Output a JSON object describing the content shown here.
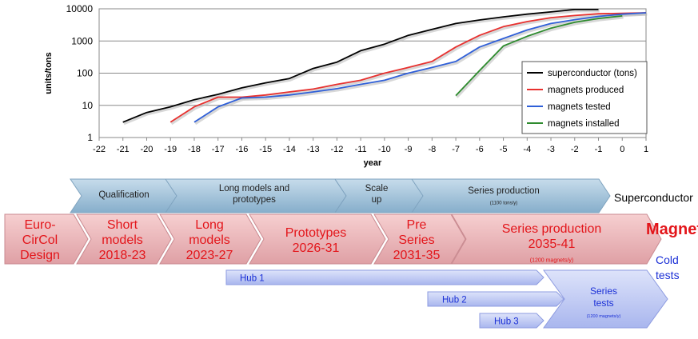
{
  "chart_data": {
    "type": "line",
    "title": "",
    "xlabel": "year",
    "ylabel": "units/tons",
    "y_scale": "log",
    "xlim": [
      -22,
      1
    ],
    "ylim": [
      1,
      10000
    ],
    "x_ticks": [
      "-22",
      "-21",
      "-20",
      "-19",
      "-18",
      "-17",
      "-16",
      "-15",
      "-14",
      "-13",
      "-12",
      "-11",
      "-10",
      "-9",
      "-8",
      "-7",
      "-6",
      "-5",
      "-4",
      "-3",
      "-2",
      "-1",
      "0",
      "1"
    ],
    "y_ticks": [
      "1",
      "10",
      "100",
      "1000",
      "10000"
    ],
    "grid": "horizontal",
    "legend_position": "right",
    "series": [
      {
        "name": "superconductor (tons)",
        "color": "#000000",
        "x": [
          -21,
          -20,
          -19,
          -18,
          -17,
          -16,
          -15,
          -14,
          -13,
          -12,
          -11,
          -10,
          -9,
          -8,
          -7,
          -6,
          -5,
          -4,
          -3,
          -2,
          -1
        ],
        "y": [
          3,
          6,
          9,
          15,
          22,
          35,
          50,
          68,
          140,
          220,
          500,
          800,
          1500,
          2300,
          3500,
          4500,
          5600,
          6800,
          8000,
          9500,
          9500
        ]
      },
      {
        "name": "magnets produced",
        "color": "#e8312f",
        "x": [
          -19,
          -18,
          -17,
          -16,
          -15,
          -14,
          -13,
          -12,
          -11,
          -10,
          -9,
          -8,
          -7,
          -6,
          -5,
          -4,
          -3,
          -2,
          -1,
          0,
          1
        ],
        "y": [
          3,
          9,
          18,
          18,
          21,
          26,
          32,
          45,
          60,
          100,
          150,
          230,
          650,
          1500,
          2800,
          4000,
          5300,
          6200,
          7000,
          7200,
          7500
        ]
      },
      {
        "name": "magnets tested",
        "color": "#2f5fd8",
        "x": [
          -18,
          -17,
          -16,
          -15,
          -14,
          -13,
          -12,
          -11,
          -10,
          -9,
          -8,
          -7,
          -6,
          -5,
          -4,
          -3,
          -2,
          -1,
          0,
          1
        ],
        "y": [
          3,
          9,
          17,
          18,
          21,
          26,
          33,
          45,
          60,
          100,
          150,
          230,
          650,
          1200,
          2200,
          3500,
          4600,
          5800,
          6800,
          7500
        ]
      },
      {
        "name": "magnets installed",
        "color": "#2e8b2e",
        "x": [
          -7,
          -6,
          -5,
          -4,
          -3,
          -2,
          -1,
          0
        ],
        "y": [
          20,
          120,
          700,
          1400,
          2500,
          3800,
          5000,
          6000
        ]
      }
    ]
  },
  "timeline": {
    "superconductor_label": "Superconductor",
    "magnets_label": "Magnets",
    "cold_tests_label": [
      "Cold",
      "tests"
    ],
    "superconductor_phases": [
      {
        "lines": [
          "Qualification"
        ],
        "sub": ""
      },
      {
        "lines": [
          "Long models and",
          "prototypes"
        ],
        "sub": ""
      },
      {
        "lines": [
          "Scale",
          "up"
        ],
        "sub": ""
      },
      {
        "lines": [
          "Series production"
        ],
        "sub": "(1100 tons/y)"
      }
    ],
    "magnet_phases": [
      {
        "lines": [
          "Euro-",
          "CirCol",
          "Design"
        ],
        "sub": ""
      },
      {
        "lines": [
          "Short",
          "models",
          "2018-23"
        ],
        "sub": ""
      },
      {
        "lines": [
          "Long",
          "models",
          "2023-27"
        ],
        "sub": ""
      },
      {
        "lines": [
          "Prototypes",
          "2026-31"
        ],
        "sub": ""
      },
      {
        "lines": [
          "Pre",
          "Series",
          "2031-35"
        ],
        "sub": ""
      },
      {
        "lines": [
          "Series production",
          "2035-41"
        ],
        "sub": "(1200 magnets/y)"
      }
    ],
    "hubs": [
      "Hub 1",
      "Hub 2",
      "Hub 3"
    ],
    "series_tests": {
      "lines": [
        "Series",
        "tests"
      ],
      "sub": "(1200 magnets/y)"
    }
  }
}
